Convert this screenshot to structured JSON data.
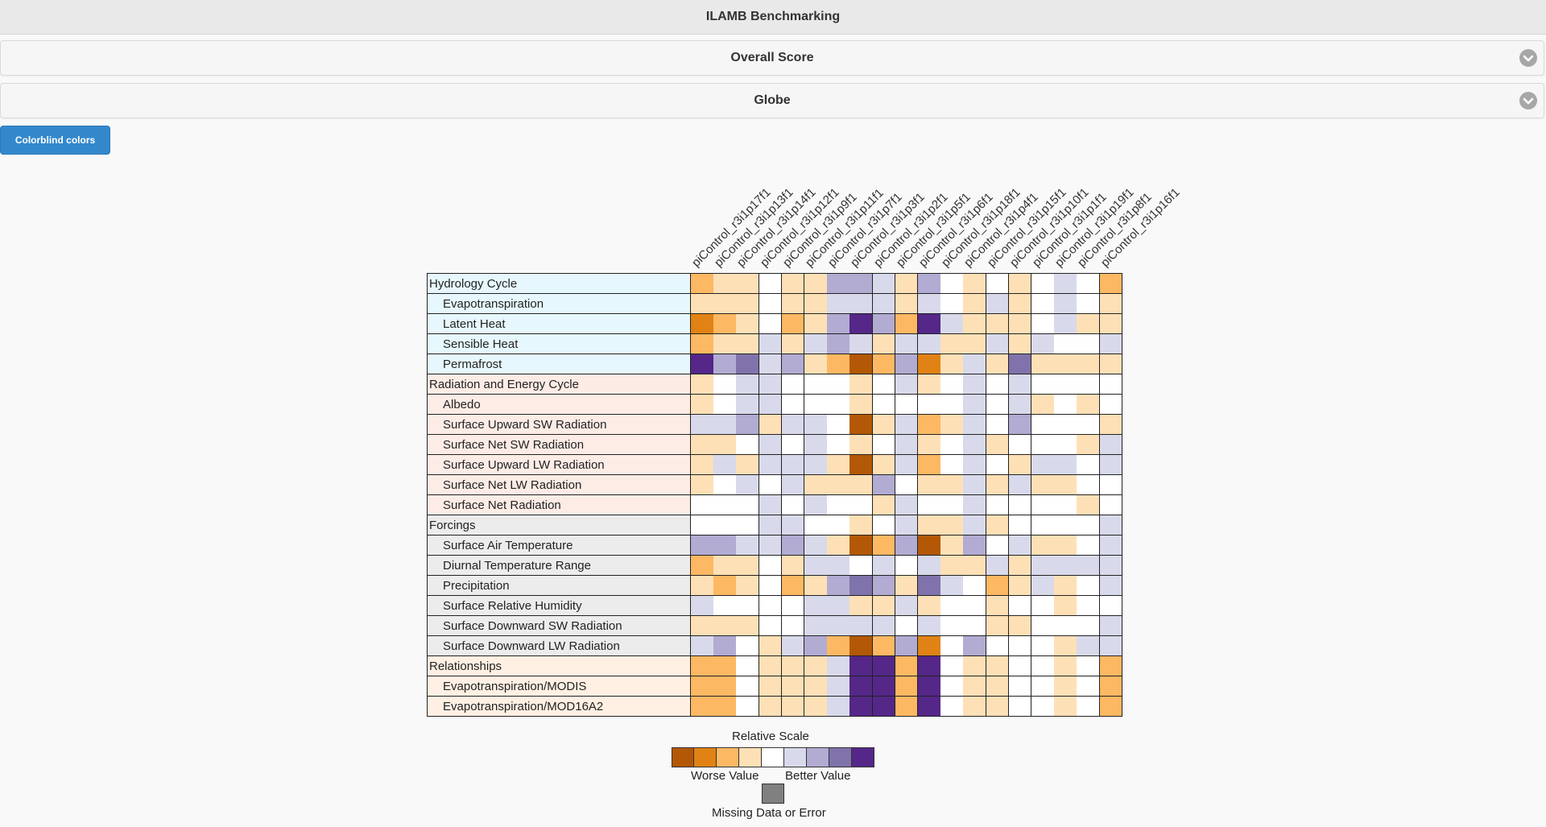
{
  "app": {
    "title": "ILAMB Benchmarking"
  },
  "sections": [
    {
      "label": "Overall Score",
      "icon": "chevron-down-icon"
    },
    {
      "label": "Globe",
      "icon": "chevron-down-icon"
    }
  ],
  "colorblind_button": {
    "label": "Colorblind colors"
  },
  "heatmap": {
    "columns": [
      "piControl_r3i1p17f1",
      "piControl_r3i1p13f1",
      "piControl_r3i1p14f1",
      "piControl_r3i1p12f1",
      "piControl_r3i1p9f1",
      "piControl_r3i1p11f1",
      "piControl_r3i1p7f1",
      "piControl_r3i1p3f1",
      "piControl_r3i1p2f1",
      "piControl_r3i1p5f1",
      "piControl_r3i1p6f1",
      "piControl_r3i1p18f1",
      "piControl_r3i1p4f1",
      "piControl_r3i1p15f1",
      "piControl_r3i1p10f1",
      "piControl_r3i1p1f1",
      "piControl_r3i1p19f1",
      "piControl_r3i1p8f1",
      "piControl_r3i1p16f1"
    ],
    "rows": [
      {
        "label": "Hydrology Cycle",
        "level": 0,
        "group": "hydrology",
        "scores": [
          2,
          1,
          1,
          0,
          1,
          1,
          -2,
          -2,
          -1,
          1,
          -2,
          0,
          1,
          0,
          1,
          0,
          -1,
          0,
          2
        ]
      },
      {
        "label": "Evapotranspiration",
        "level": 1,
        "group": "hydrology",
        "scores": [
          1,
          1,
          1,
          0,
          1,
          1,
          -1,
          -1,
          -1,
          1,
          -1,
          0,
          1,
          -1,
          1,
          0,
          -1,
          0,
          1
        ]
      },
      {
        "label": "Latent Heat",
        "level": 1,
        "group": "hydrology",
        "scores": [
          3,
          2,
          1,
          0,
          2,
          1,
          -2,
          -4,
          -2,
          2,
          -4,
          -1,
          1,
          1,
          1,
          0,
          -1,
          1,
          1
        ]
      },
      {
        "label": "Sensible Heat",
        "level": 1,
        "group": "hydrology",
        "scores": [
          2,
          1,
          1,
          -1,
          1,
          -1,
          -2,
          -1,
          1,
          -1,
          -1,
          1,
          1,
          -1,
          1,
          -1,
          0,
          0,
          -1
        ]
      },
      {
        "label": "Permafrost",
        "level": 1,
        "group": "hydrology",
        "scores": [
          -4,
          -2,
          -3,
          -1,
          -2,
          1,
          2,
          4,
          2,
          -2,
          3,
          1,
          -1,
          1,
          -3,
          1,
          1,
          1,
          1
        ]
      },
      {
        "label": "Radiation and Energy Cycle",
        "level": 0,
        "group": "radiation",
        "scores": [
          1,
          0,
          -1,
          -1,
          0,
          0,
          0,
          1,
          0,
          -1,
          1,
          0,
          -1,
          0,
          -1,
          0,
          0,
          0,
          0
        ]
      },
      {
        "label": "Albedo",
        "level": 1,
        "group": "radiation",
        "scores": [
          1,
          0,
          -1,
          -1,
          0,
          0,
          0,
          1,
          0,
          0,
          0,
          0,
          -1,
          0,
          -1,
          1,
          0,
          1,
          0
        ]
      },
      {
        "label": "Surface Upward SW Radiation",
        "level": 1,
        "group": "radiation",
        "scores": [
          -1,
          -1,
          -2,
          1,
          -1,
          -1,
          0,
          4,
          1,
          -1,
          2,
          1,
          -1,
          0,
          -2,
          0,
          0,
          0,
          1
        ]
      },
      {
        "label": "Surface Net SW Radiation",
        "level": 1,
        "group": "radiation",
        "scores": [
          1,
          1,
          0,
          -1,
          0,
          -1,
          0,
          1,
          0,
          -1,
          1,
          0,
          -1,
          1,
          0,
          0,
          0,
          1,
          -1
        ]
      },
      {
        "label": "Surface Upward LW Radiation",
        "level": 1,
        "group": "radiation",
        "scores": [
          1,
          -1,
          1,
          -1,
          -1,
          -1,
          1,
          4,
          1,
          -1,
          2,
          0,
          -1,
          0,
          1,
          -1,
          -1,
          0,
          -1
        ]
      },
      {
        "label": "Surface Net LW Radiation",
        "level": 1,
        "group": "radiation",
        "scores": [
          1,
          0,
          -1,
          0,
          -1,
          1,
          1,
          1,
          -2,
          0,
          1,
          1,
          -1,
          1,
          -1,
          1,
          1,
          0,
          0
        ]
      },
      {
        "label": "Surface Net Radiation",
        "level": 1,
        "group": "radiation",
        "scores": [
          0,
          0,
          0,
          -1,
          0,
          -1,
          0,
          0,
          1,
          -1,
          0,
          0,
          -1,
          0,
          0,
          0,
          0,
          1,
          0
        ]
      },
      {
        "label": "Forcings",
        "level": 0,
        "group": "forcings",
        "scores": [
          0,
          0,
          0,
          -1,
          -1,
          0,
          0,
          1,
          0,
          -1,
          1,
          1,
          -1,
          1,
          0,
          0,
          0,
          0,
          -1
        ]
      },
      {
        "label": "Surface Air Temperature",
        "level": 1,
        "group": "forcings",
        "scores": [
          -2,
          -2,
          -1,
          -1,
          -2,
          -1,
          1,
          4,
          2,
          -2,
          4,
          1,
          -2,
          0,
          -1,
          1,
          1,
          0,
          -1
        ]
      },
      {
        "label": "Diurnal Temperature Range",
        "level": 1,
        "group": "forcings",
        "scores": [
          2,
          1,
          1,
          0,
          1,
          -1,
          -1,
          0,
          -1,
          0,
          -1,
          1,
          1,
          -1,
          1,
          -1,
          -1,
          -1,
          -1
        ]
      },
      {
        "label": "Precipitation",
        "level": 1,
        "group": "forcings",
        "scores": [
          1,
          2,
          1,
          0,
          2,
          1,
          -2,
          -3,
          -2,
          1,
          -3,
          -1,
          0,
          2,
          1,
          -1,
          1,
          0,
          -1
        ]
      },
      {
        "label": "Surface Relative Humidity",
        "level": 1,
        "group": "forcings",
        "scores": [
          -1,
          0,
          0,
          0,
          0,
          -1,
          -1,
          1,
          1,
          -1,
          1,
          0,
          0,
          1,
          0,
          0,
          1,
          0,
          0
        ]
      },
      {
        "label": "Surface Downward SW Radiation",
        "level": 1,
        "group": "forcings",
        "scores": [
          1,
          1,
          1,
          0,
          0,
          -1,
          -1,
          -1,
          -1,
          0,
          -1,
          0,
          0,
          1,
          1,
          0,
          0,
          0,
          -1
        ]
      },
      {
        "label": "Surface Downward LW Radiation",
        "level": 1,
        "group": "forcings",
        "scores": [
          -1,
          -2,
          0,
          1,
          -1,
          -2,
          2,
          4,
          2,
          -2,
          3,
          0,
          -2,
          0,
          0,
          0,
          1,
          -1,
          -1
        ]
      },
      {
        "label": "Relationships",
        "level": 0,
        "group": "relationships",
        "scores": [
          2,
          2,
          0,
          1,
          1,
          1,
          -1,
          -4,
          -4,
          2,
          -4,
          0,
          1,
          1,
          0,
          0,
          1,
          0,
          2
        ]
      },
      {
        "label": "Evapotranspiration/MODIS",
        "level": 1,
        "group": "relationships",
        "scores": [
          2,
          2,
          0,
          1,
          1,
          1,
          -1,
          -4,
          -4,
          2,
          -4,
          0,
          1,
          1,
          0,
          0,
          1,
          0,
          2
        ]
      },
      {
        "label": "Evapotranspiration/MOD16A2",
        "level": 1,
        "group": "relationships",
        "scores": [
          2,
          2,
          0,
          1,
          1,
          1,
          -1,
          -4,
          -4,
          2,
          -4,
          0,
          1,
          1,
          0,
          0,
          1,
          0,
          2
        ]
      }
    ],
    "group_colors": {
      "hydrology": "#e6f8fd",
      "radiation": "#fdece6",
      "forcings": "#ececec",
      "relationships": "#fff0e3"
    },
    "score_colors": {
      "4": "#b35806",
      "3": "#e08214",
      "2": "#fdb863",
      "1": "#fee0b6",
      "0": "#ffffff",
      "-1": "#d8daeb",
      "-2": "#b2abd2",
      "-3": "#8073ac",
      "-4": "#542788"
    }
  },
  "legend": {
    "title": "Relative Scale",
    "worse_label": "Worse Value",
    "better_label": "Better Value",
    "missing_label": "Missing Data or Error",
    "colors": [
      "#b35806",
      "#e08214",
      "#fdb863",
      "#fee0b6",
      "#ffffff",
      "#d8daeb",
      "#b2abd2",
      "#8073ac",
      "#542788"
    ],
    "missing_color": "#808080"
  }
}
